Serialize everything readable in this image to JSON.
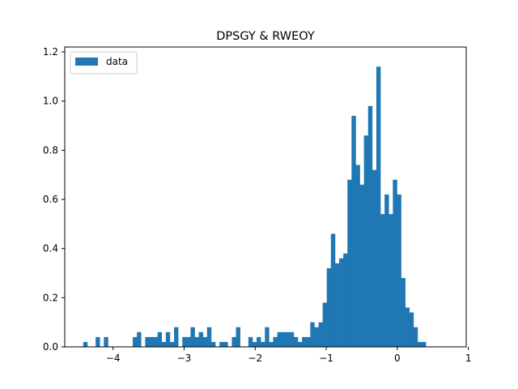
{
  "chart_data": {
    "type": "bar",
    "title": "DPSGY & RWEOY",
    "xlabel": "",
    "ylabel": "",
    "xlim": [
      -4.68,
      0.97
    ],
    "ylim": [
      0,
      1.22
    ],
    "xticks": [
      -4,
      -3,
      -2,
      -1,
      0,
      1
    ],
    "xtick_labels": [
      "−4",
      "−3",
      "−2",
      "−1",
      "0",
      "1"
    ],
    "yticks": [
      0.0,
      0.2,
      0.4,
      0.6,
      0.8,
      1.0,
      1.2
    ],
    "ytick_labels": [
      "0.0",
      "0.2",
      "0.4",
      "0.6",
      "0.8",
      "1.0",
      "1.2"
    ],
    "legend": {
      "position": "upper left",
      "entries": [
        "data"
      ]
    },
    "grid": false,
    "bar_color": "#1f77b4",
    "bin_start": -4.42,
    "bin_width": 0.0581,
    "values": [
      0.02,
      0.0,
      0.0,
      0.04,
      0.0,
      0.04,
      0.0,
      0.0,
      0.0,
      0.0,
      0.0,
      0.0,
      0.04,
      0.06,
      0.0,
      0.04,
      0.04,
      0.04,
      0.06,
      0.02,
      0.06,
      0.02,
      0.08,
      0.0,
      0.04,
      0.04,
      0.08,
      0.04,
      0.06,
      0.04,
      0.08,
      0.02,
      0.0,
      0.02,
      0.02,
      0.0,
      0.04,
      0.08,
      0.0,
      0.0,
      0.04,
      0.02,
      0.04,
      0.02,
      0.08,
      0.02,
      0.04,
      0.06,
      0.06,
      0.06,
      0.06,
      0.04,
      0.02,
      0.04,
      0.04,
      0.1,
      0.08,
      0.1,
      0.18,
      0.32,
      0.46,
      0.34,
      0.36,
      0.38,
      0.68,
      0.94,
      0.74,
      0.66,
      0.86,
      0.98,
      0.72,
      1.14,
      0.54,
      0.62,
      0.54,
      0.68,
      0.62,
      0.28,
      0.16,
      0.14,
      0.08,
      0.02,
      0.02
    ]
  }
}
